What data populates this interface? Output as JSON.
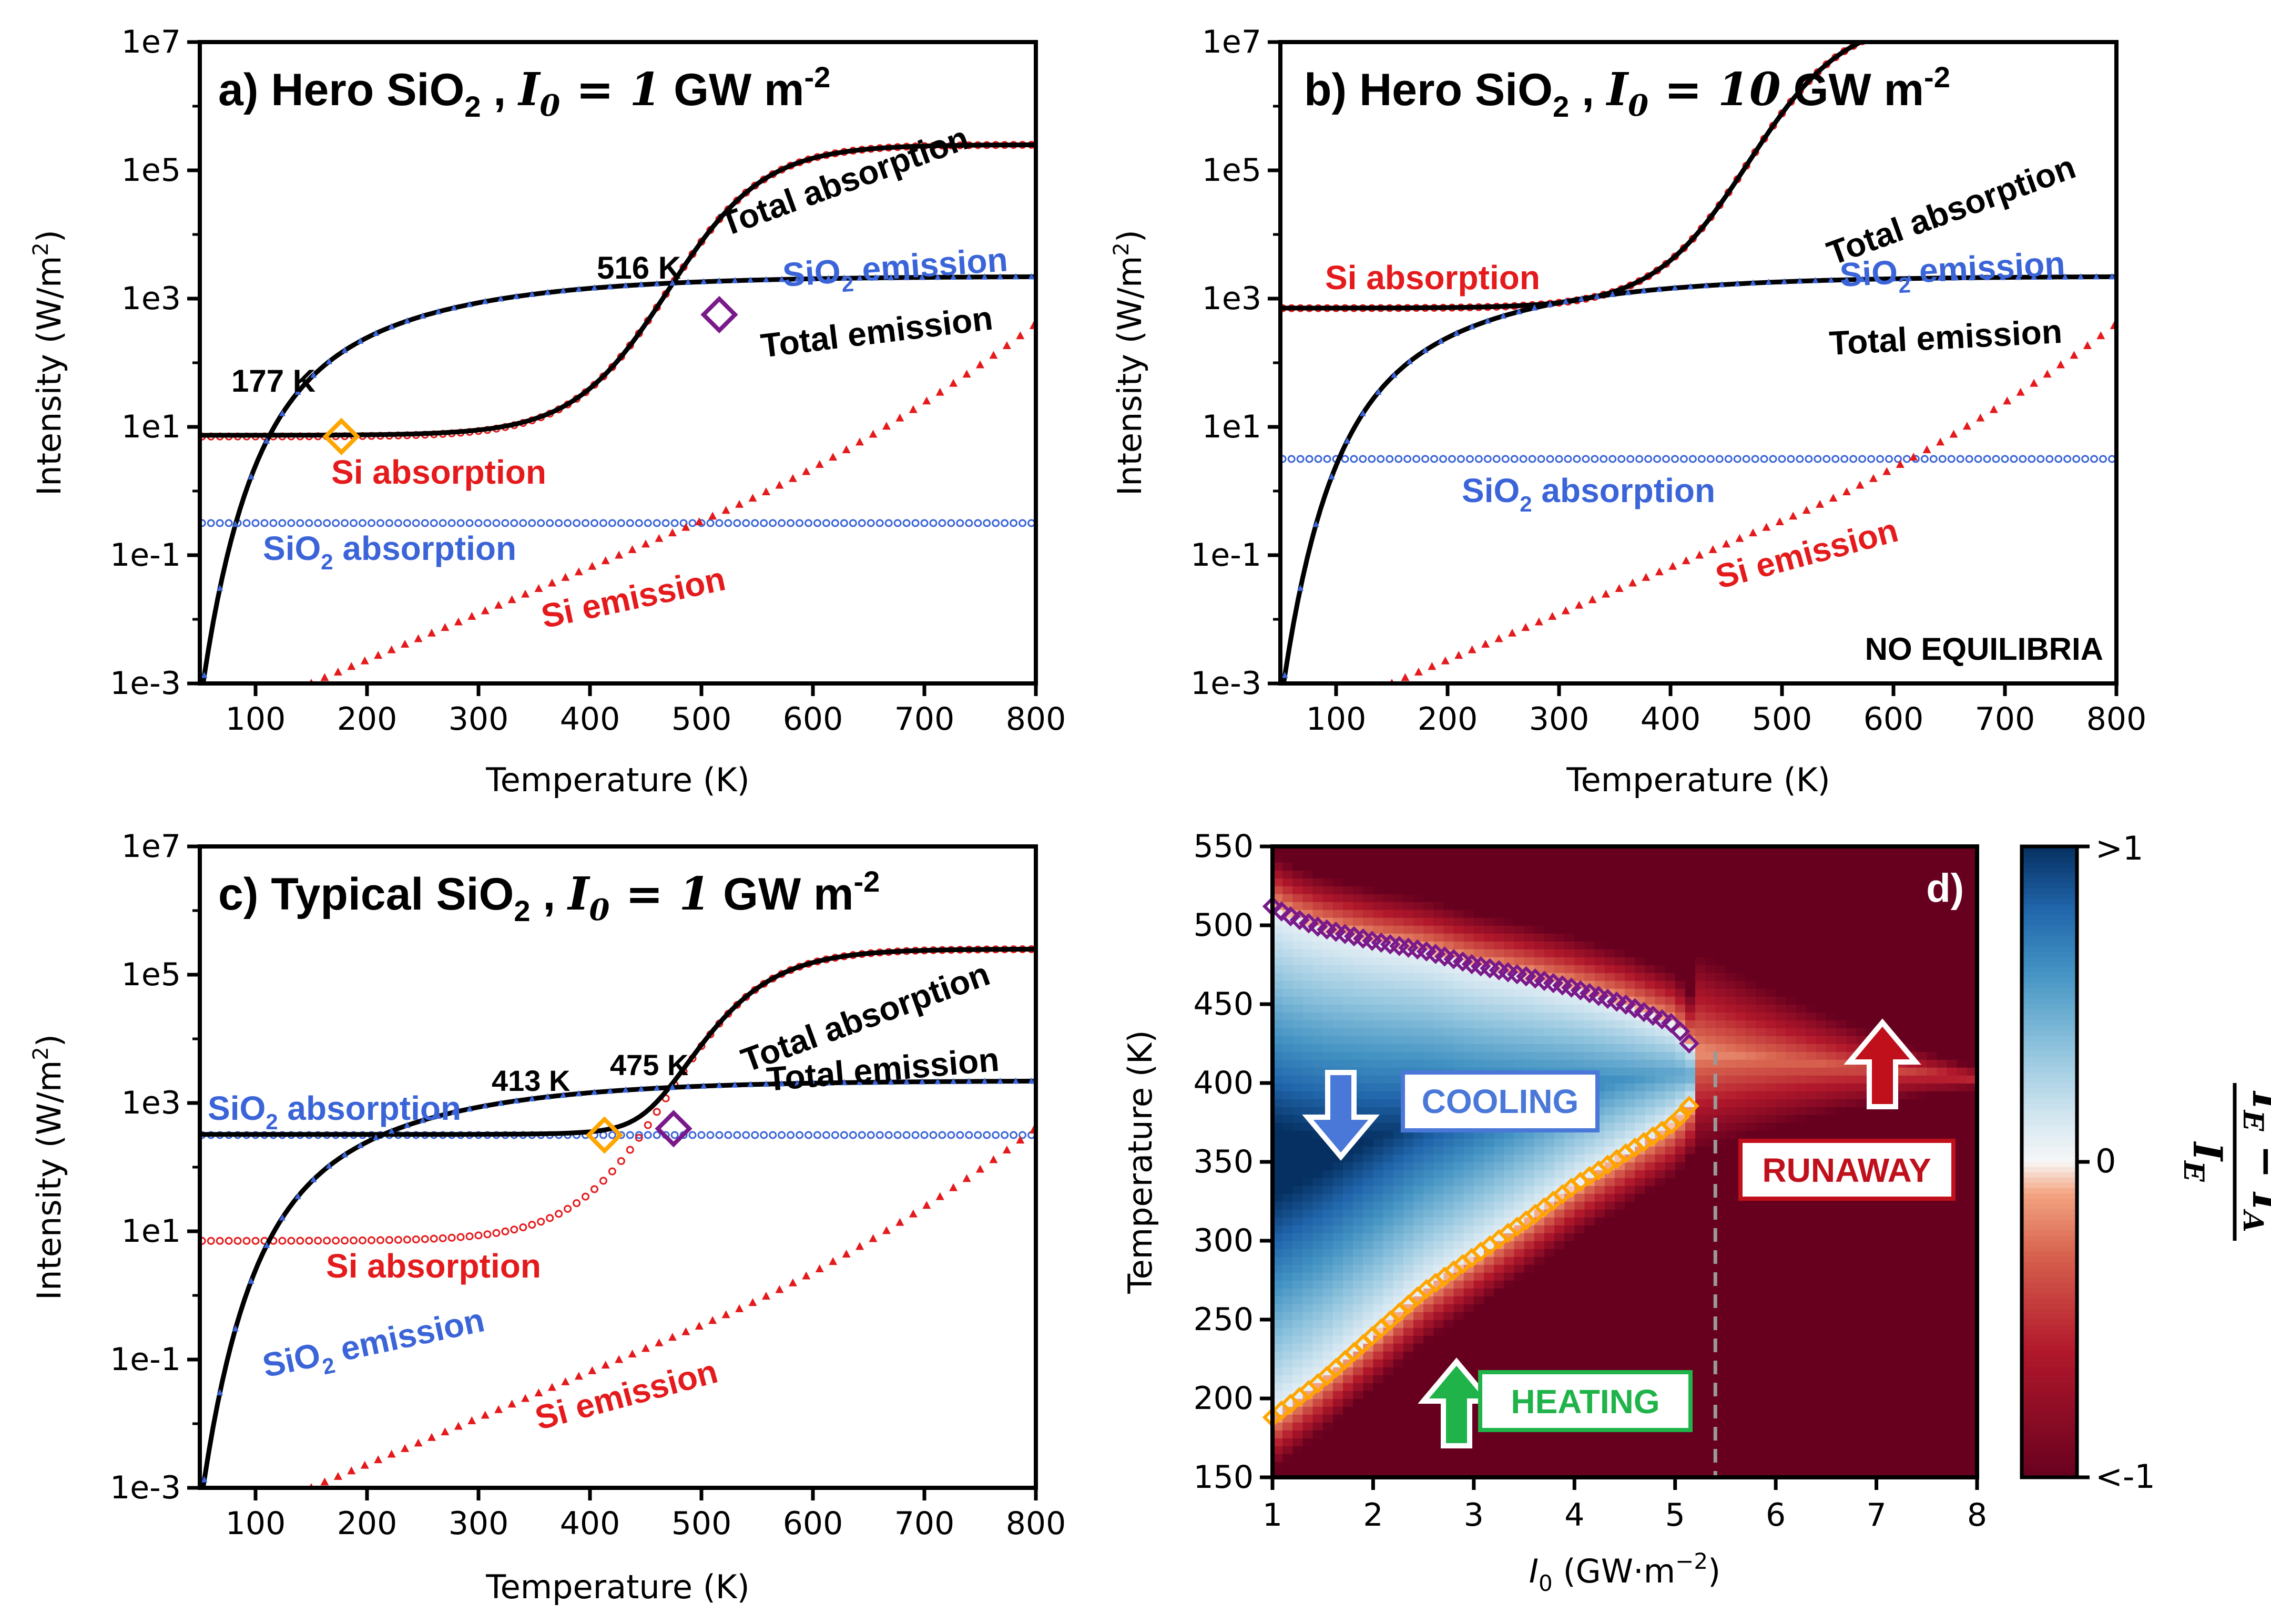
{
  "colors": {
    "black": "#000000",
    "red": "#e41a1c",
    "blue": "#3a64d8",
    "orange": "#ffa500",
    "purple": "#7a1a8a",
    "green": "#1fb34a",
    "darkred": "#b30f1f",
    "runaway_red": "#c0101c"
  },
  "chart_data": [
    {
      "id": "a",
      "type": "line",
      "title_prefix": "a) Hero SiO",
      "title_sub": "2",
      "title_mid": " , ",
      "title_math": "I",
      "title_math_sub": "0",
      "title_eq": " = 1",
      "title_unit": " GW m",
      "title_sup": "-2",
      "xlabel": "Temperature (K)",
      "ylabel": "Intensity (W/m²)",
      "ylabel_main": "Intensity (W/m",
      "ylabel_sup": "2",
      "ylabel_end": ")",
      "xlim": [
        50,
        800
      ],
      "ylim_log10": [
        -3,
        7
      ],
      "xticks": [
        "100",
        "200",
        "300",
        "400",
        "500",
        "600",
        "700",
        "800"
      ],
      "yticks": [
        "1e-3",
        "1e-1",
        "1e1",
        "1e3",
        "1e5",
        "1e7"
      ],
      "params": {
        "sio2_abs_log": -0.5,
        "si_abs_low_log": 0.85,
        "si_abs_high_log": 5.4,
        "si_abs_T0": 470,
        "si_abs_w": 43
      },
      "markers": [
        {
          "T": 177,
          "label": "177 K",
          "color": "orange"
        },
        {
          "T": 516,
          "label": "516 K",
          "color": "purple"
        }
      ],
      "curve_labels": {
        "total_absorption": "Total absorption",
        "total_emission": "Total emission",
        "sio2_emission_main": "SiO",
        "sio2_emission_sub": "2",
        "sio2_emission_end": " emission",
        "si_absorption": "Si absorption",
        "sio2_absorption_main": "SiO",
        "sio2_absorption_sub": "2",
        "sio2_absorption_end": " absorption",
        "si_emission": "Si emission"
      },
      "note": ""
    },
    {
      "id": "b",
      "type": "line",
      "title_prefix": "b) Hero SiO",
      "title_sub": "2",
      "title_mid": " , ",
      "title_math": "I",
      "title_math_sub": "0",
      "title_eq": " = 10",
      "title_unit": " GW m",
      "title_sup": "-2",
      "xlabel": "Temperature (K)",
      "ylabel": "Intensity (W/m²)",
      "ylabel_main": "Intensity (W/m",
      "ylabel_sup": "2",
      "ylabel_end": ")",
      "xlim": [
        50,
        800
      ],
      "ylim_log10": [
        -3,
        7
      ],
      "xticks": [
        "100",
        "200",
        "300",
        "400",
        "500",
        "600",
        "700",
        "800"
      ],
      "yticks": [
        "1e-3",
        "1e-1",
        "1e1",
        "1e3",
        "1e5",
        "1e7"
      ],
      "params": {
        "sio2_abs_log": 0.5,
        "si_abs_low_log": 2.85,
        "si_abs_high_log": 7.4,
        "si_abs_T0": 470,
        "si_abs_w": 43
      },
      "markers": [],
      "curve_labels": {
        "total_absorption": "Total absorption",
        "total_emission": "Total emission",
        "sio2_emission_main": "SiO",
        "sio2_emission_sub": "2",
        "sio2_emission_end": " emission",
        "si_absorption": "Si absorption",
        "sio2_absorption_main": "SiO",
        "sio2_absorption_sub": "2",
        "sio2_absorption_end": " absorption",
        "si_emission": "Si emission"
      },
      "note": "NO EQUILIBRIA"
    },
    {
      "id": "c",
      "type": "line",
      "title_prefix": "c) Typical SiO",
      "title_sub": "2",
      "title_mid": " , ",
      "title_math": "I",
      "title_math_sub": "0",
      "title_eq": " = 1",
      "title_unit": " GW m",
      "title_sup": "-2",
      "xlabel": "Temperature (K)",
      "ylabel": "Intensity (W/m²)",
      "ylabel_main": "Intensity (W/m",
      "ylabel_sup": "2",
      "ylabel_end": ")",
      "xlim": [
        50,
        800
      ],
      "ylim_log10": [
        -3,
        7
      ],
      "xticks": [
        "100",
        "200",
        "300",
        "400",
        "500",
        "600",
        "700",
        "800"
      ],
      "yticks": [
        "1e-3",
        "1e-1",
        "1e1",
        "1e3",
        "1e5",
        "1e7"
      ],
      "params": {
        "sio2_abs_log": 2.5,
        "si_abs_low_log": 0.85,
        "si_abs_high_log": 5.4,
        "si_abs_T0": 470,
        "si_abs_w": 43
      },
      "markers": [
        {
          "T": 413,
          "label": "413 K",
          "color": "orange"
        },
        {
          "T": 475,
          "label": "475 K",
          "color": "purple"
        }
      ],
      "curve_labels": {
        "total_absorption": "Total absorption",
        "total_emission": "Total emission",
        "sio2_emission_main": "SiO",
        "sio2_emission_sub": "2",
        "sio2_emission_end": " emission",
        "si_absorption": "Si absorption",
        "sio2_absorption_main": "SiO",
        "sio2_absorption_sub": "2",
        "sio2_absorption_end": " absorption",
        "si_emission": "Si emission"
      },
      "note": ""
    },
    {
      "id": "d",
      "type": "heatmap",
      "panel_label": "d)",
      "xlabel_math": "I",
      "xlabel_sub": "0",
      "xlabel_rest": " (GW·m",
      "xlabel_sup": "−2",
      "xlabel_end": ")",
      "ylabel": "Temperature (K)",
      "xlim": [
        1,
        8
      ],
      "ylim": [
        150,
        550
      ],
      "xticks": [
        "1",
        "2",
        "3",
        "4",
        "5",
        "6",
        "7",
        "8"
      ],
      "yticks": [
        "150",
        "200",
        "250",
        "300",
        "350",
        "400",
        "450",
        "500",
        "550"
      ],
      "colorbar": {
        "ticks": [
          ">1",
          "0",
          "<-1"
        ],
        "range": [
          -1,
          1
        ]
      },
      "colorbar_label": {
        "num_a": "I",
        "num_a_sub": "E",
        "minus": " − ",
        "num_b": "I",
        "num_b_sub": "A",
        "den": "I",
        "den_sub": "E"
      },
      "threshold_I0": 5.4,
      "upper_boundary": [
        [
          1.0,
          512
        ],
        [
          1.2,
          505
        ],
        [
          1.5,
          498
        ],
        [
          2.0,
          490
        ],
        [
          2.5,
          484
        ],
        [
          3.0,
          475
        ],
        [
          3.5,
          468
        ],
        [
          4.0,
          460
        ],
        [
          4.5,
          450
        ],
        [
          5.0,
          437
        ],
        [
          5.2,
          420
        ]
      ],
      "lower_boundary": [
        [
          1.0,
          188
        ],
        [
          1.5,
          212
        ],
        [
          2.0,
          240
        ],
        [
          2.5,
          268
        ],
        [
          3.0,
          290
        ],
        [
          3.5,
          312
        ],
        [
          4.0,
          335
        ],
        [
          4.5,
          355
        ],
        [
          5.0,
          375
        ],
        [
          5.2,
          390
        ]
      ],
      "annotations": {
        "cooling": "COOLING",
        "heating": "HEATING",
        "runaway": "RUNAWAY"
      }
    }
  ]
}
